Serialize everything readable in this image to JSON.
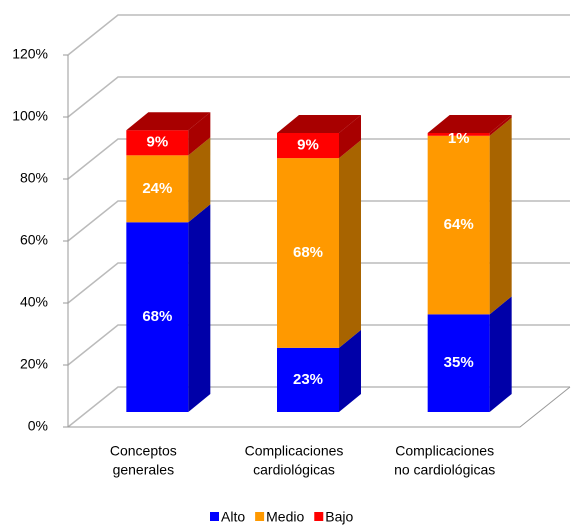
{
  "chart_data": {
    "type": "stacked_bar_3d",
    "categories": [
      [
        "Conceptos",
        "generales"
      ],
      [
        "Complicaciones",
        "cardiológicas"
      ],
      [
        "Complicaciones",
        "no cardiológicas"
      ]
    ],
    "series": [
      {
        "name": "Alto",
        "color": "#0000ff",
        "side": "#0000a8",
        "values": [
          68,
          23,
          35
        ],
        "value_labels": [
          "68%",
          "23%",
          "35%"
        ]
      },
      {
        "name": "Medio",
        "color": "#ff9900",
        "side": "#a86400",
        "values": [
          24,
          68,
          64
        ],
        "value_labels": [
          "24%",
          "68%",
          "64%"
        ]
      },
      {
        "name": "Bajo",
        "color": "#ff0000",
        "side": "#a80000",
        "values": [
          9,
          9,
          1
        ],
        "value_labels": [
          "9%",
          "9%",
          "1%"
        ]
      }
    ],
    "ylim": [
      0,
      120
    ],
    "yticks": [
      {
        "value": 0,
        "label": "0%"
      },
      {
        "value": 20,
        "label": "20%"
      },
      {
        "value": 40,
        "label": "40%"
      },
      {
        "value": 60,
        "label": "60%"
      },
      {
        "value": 80,
        "label": "80%"
      },
      {
        "value": 100,
        "label": "100%"
      },
      {
        "value": 120,
        "label": "120%"
      }
    ],
    "grid": true
  }
}
